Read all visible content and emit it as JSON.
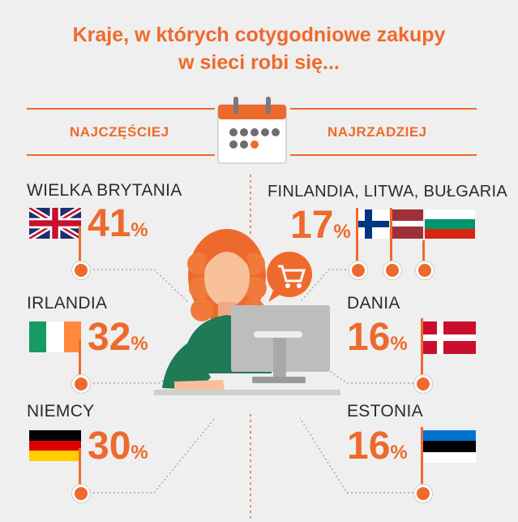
{
  "title": {
    "line1": "Kraje, w których cotygodniowe zakupy",
    "line2": "w sieci robi się..."
  },
  "headers": {
    "most": "NAJCZĘŚCIEJ",
    "least": "NAJRZADZIEJ"
  },
  "most_frequent": [
    {
      "country": "WIELKA BRYTANIA",
      "value": "41",
      "flag": "uk-flag"
    },
    {
      "country": "IRLANDIA",
      "value": "32",
      "flag": "ireland-flag"
    },
    {
      "country": "NIEMCY",
      "value": "30",
      "flag": "germany-flag"
    }
  ],
  "least_frequent": [
    {
      "country": "FINLANDIA, LITWA, BUŁGARIA",
      "value": "17",
      "flag": "finland-latvia-bulgaria-flags"
    },
    {
      "country": "DANIA",
      "value": "16",
      "flag": "denmark-flag"
    },
    {
      "country": "ESTONIA",
      "value": "16",
      "flag": "estonia-flag"
    }
  ],
  "percent_sign": "%",
  "colors": {
    "accent": "#ee6a2c",
    "text": "#2b2b2b",
    "background": "#efefef"
  },
  "icons": [
    "calendar-icon",
    "shopping-cart-icon",
    "woman-at-computer-illustration"
  ]
}
